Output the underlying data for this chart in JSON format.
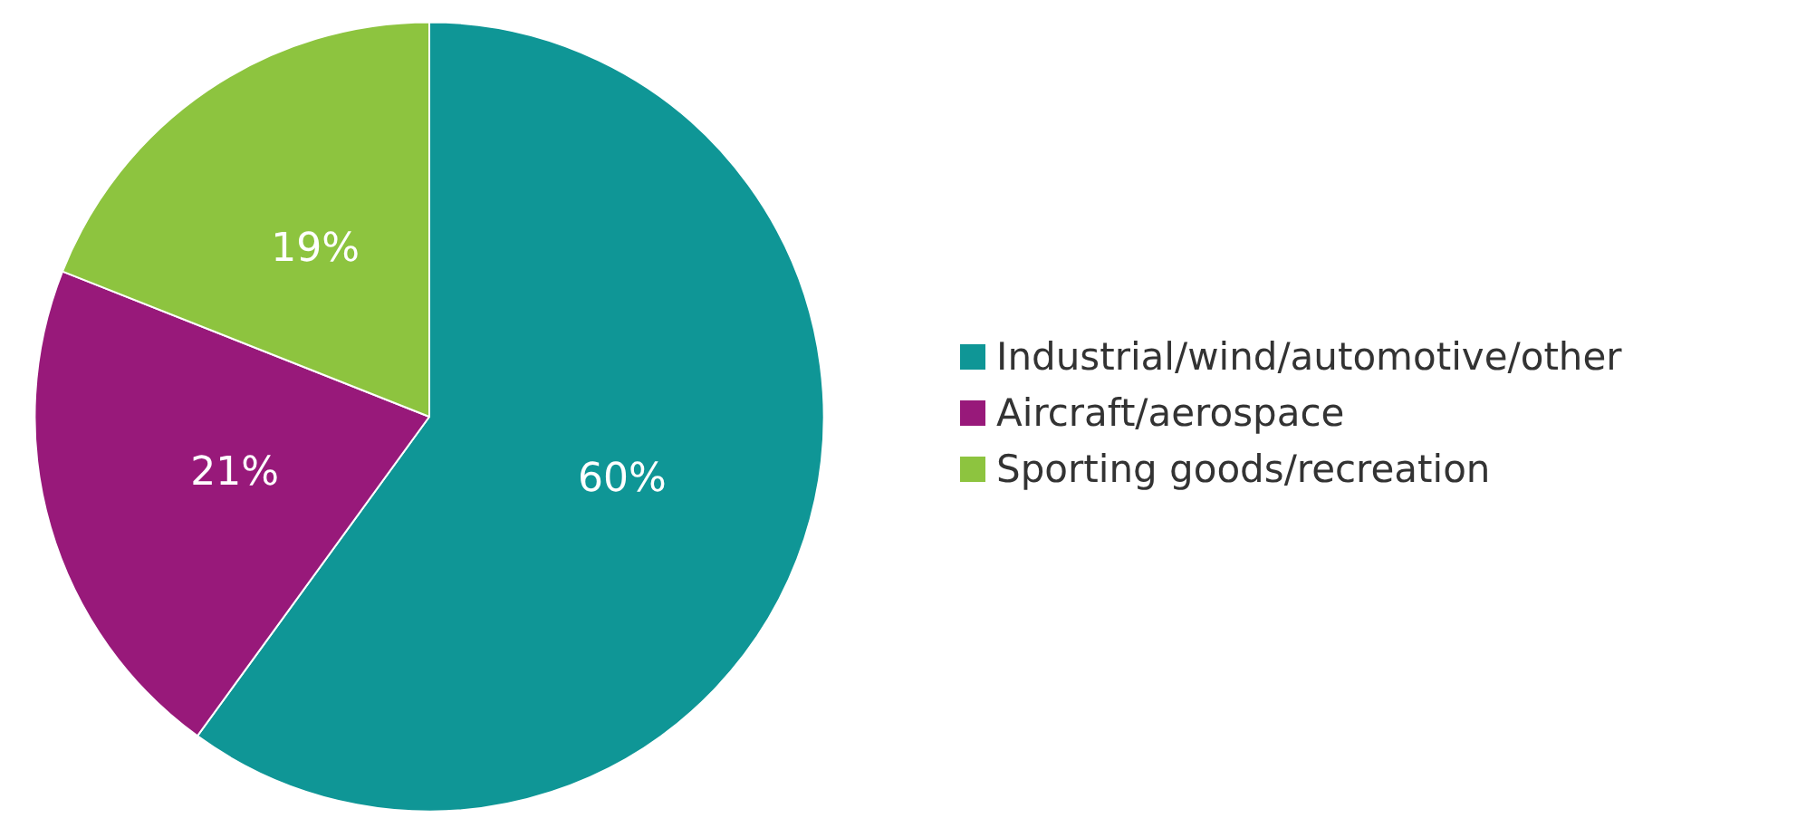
{
  "chart_data": {
    "type": "pie",
    "categories": [
      "Industrial/wind/automotive/other",
      "Aircraft/aerospace",
      "Sporting goods/recreation"
    ],
    "values": [
      60,
      21,
      19
    ],
    "colors": [
      "#0f9696",
      "#98197a",
      "#8dc43f"
    ],
    "value_labels": [
      "60%",
      "21%",
      "19%"
    ],
    "legend": "right"
  }
}
